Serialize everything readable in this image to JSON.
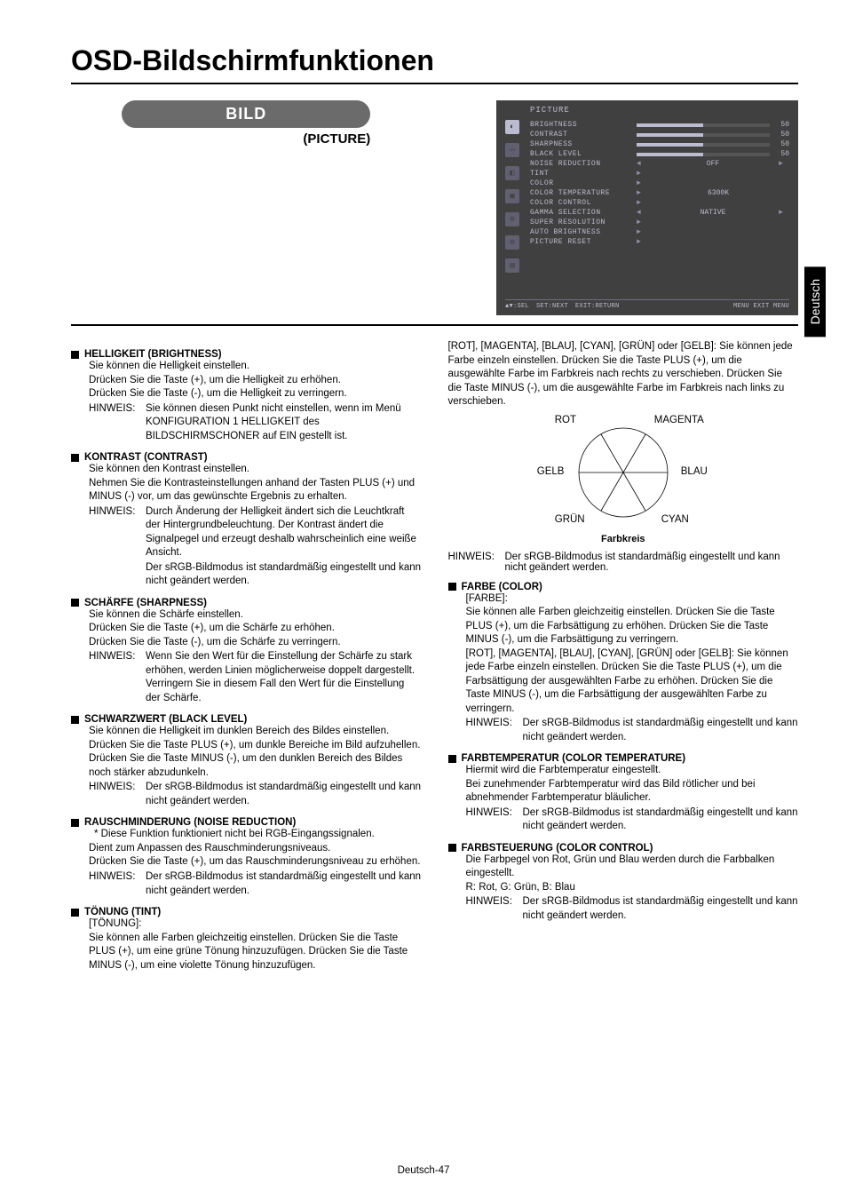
{
  "page": {
    "title": "OSD-Bildschirmfunktionen",
    "footer": "Deutsch-47",
    "sideTab": "Deutsch"
  },
  "category": {
    "badge": "BILD",
    "subtitle": "(PICTURE)"
  },
  "osd": {
    "header": "PICTURE",
    "items": [
      {
        "label": "BRIGHTNESS",
        "type": "bar",
        "value": 50
      },
      {
        "label": "CONTRAST",
        "type": "bar",
        "value": 50
      },
      {
        "label": "SHARPNESS",
        "type": "bar",
        "value": 50
      },
      {
        "label": "BLACK LEVEL",
        "type": "bar",
        "value": 50
      },
      {
        "label": "NOISE REDUCTION",
        "type": "select",
        "text": "OFF"
      },
      {
        "label": "TINT",
        "type": "arrow"
      },
      {
        "label": "COLOR",
        "type": "arrow"
      },
      {
        "label": "COLOR TEMPERATURE",
        "type": "text",
        "text": "6300K"
      },
      {
        "label": "COLOR CONTROL",
        "type": "arrow"
      },
      {
        "label": "GAMMA SELECTION",
        "type": "select",
        "text": "NATIVE"
      },
      {
        "label": "SUPER RESOLUTION",
        "type": "arrow"
      },
      {
        "label": "AUTO BRIGHTNESS",
        "type": "arrow"
      },
      {
        "label": "PICTURE RESET",
        "type": "arrow"
      }
    ],
    "footer": {
      "sel": "▲▼:SEL",
      "next": "SET:NEXT",
      "return": "EXIT:RETURN",
      "exit": "MENU EXIT MENU"
    }
  },
  "leftSections": [
    {
      "heading": "HELLIGKEIT (BRIGHTNESS)",
      "body": [
        "Sie können die Helligkeit einstellen.",
        "Drücken Sie die Taste (+), um die Helligkeit zu erhöhen.",
        "Drücken Sie die Taste (-), um die Helligkeit zu verringern."
      ],
      "hinweis": [
        "Sie können diesen Punkt nicht einstellen, wenn im Menü KONFIGURATION 1 HELLIGKEIT des BILDSCHIRMSCHONER auf EIN gestellt ist."
      ]
    },
    {
      "heading": "KONTRAST (CONTRAST)",
      "body": [
        "Sie können den Kontrast einstellen.",
        "Nehmen Sie die Kontrasteinstellungen anhand der Tasten PLUS (+) und MINUS (-) vor, um das gewünschte Ergebnis zu erhalten."
      ],
      "hinweis": [
        "Durch Änderung der Helligkeit ändert sich die Leuchtkraft der Hintergrundbeleuchtung. Der Kontrast ändert die Signalpegel und erzeugt deshalb wahrscheinlich eine weiße Ansicht.",
        "Der sRGB-Bildmodus ist standardmäßig eingestellt und kann nicht geändert werden."
      ]
    },
    {
      "heading": "SCHÄRFE (SHARPNESS)",
      "body": [
        "Sie können die Schärfe einstellen.",
        "Drücken Sie die Taste (+), um die Schärfe zu erhöhen.",
        "Drücken Sie die Taste (-), um die Schärfe zu verringern."
      ],
      "hinweis": [
        "Wenn Sie den Wert für die Einstellung der Schärfe zu stark erhöhen, werden Linien möglicherweise doppelt dargestellt. Verringern Sie in diesem Fall den Wert für die Einstellung der Schärfe."
      ]
    },
    {
      "heading": "SCHWARZWERT (BLACK LEVEL)",
      "body": [
        "Sie können die Helligkeit im dunklen Bereich des Bildes einstellen. Drücken Sie die Taste PLUS (+), um dunkle Bereiche im Bild aufzuhellen. Drücken Sie die Taste MINUS (-), um den dunklen Bereich des Bildes noch stärker abzudunkeln."
      ],
      "hinweis": [
        "Der sRGB-Bildmodus ist standardmäßig eingestellt und kann nicht geändert werden."
      ]
    },
    {
      "heading": "RAUSCHMINDERUNG (NOISE REDUCTION)",
      "star": "* Diese Funktion funktioniert nicht bei RGB-Eingangssignalen.",
      "body": [
        "Dient zum Anpassen des Rauschminderungsniveaus.",
        "Drücken Sie die Taste (+), um das Rauschminderungsniveau zu erhöhen."
      ],
      "hinweis": [
        "Der sRGB-Bildmodus ist standardmäßig eingestellt und kann nicht geändert werden."
      ]
    },
    {
      "heading": "TÖNUNG (TINT)",
      "body": [
        "[TÖNUNG]:",
        "Sie können alle Farben gleichzeitig einstellen. Drücken Sie die Taste PLUS (+), um eine grüne Tönung hinzuzufügen. Drücken Sie die Taste MINUS (-), um eine violette Tönung hinzuzufügen."
      ]
    }
  ],
  "rightTop": {
    "body": [
      "[ROT], [MAGENTA], [BLAU], [CYAN], [GRÜN] oder [GELB]: Sie können jede Farbe einzeln einstellen. Drücken Sie die Taste PLUS (+), um die ausgewählte Farbe im Farbkreis nach rechts zu verschieben. Drücken Sie die Taste MINUS (-), um die ausgewählte Farbe im Farbkreis nach links zu verschieben."
    ]
  },
  "colorwheel": {
    "labels": {
      "top_l": "ROT",
      "top_r": "MAGENTA",
      "mid_l": "GELB",
      "mid_r": "BLAU",
      "bot_l": "GRÜN",
      "bot_r": "CYAN"
    },
    "caption": "Farbkreis"
  },
  "rightHinweisAfterWheel": "Der sRGB-Bildmodus ist standardmäßig eingestellt und kann nicht geändert werden.",
  "rightSections": [
    {
      "heading": "FARBE (COLOR)",
      "body": [
        "[FARBE]:",
        "Sie können alle Farben gleichzeitig einstellen. Drücken Sie die Taste PLUS (+), um die Farbsättigung zu erhöhen. Drücken Sie die Taste MINUS (-), um die Farbsättigung zu verringern.",
        "[ROT], [MAGENTA], [BLAU], [CYAN], [GRÜN] oder [GELB]: Sie können jede Farbe einzeln einstellen. Drücken Sie die Taste PLUS (+), um die Farbsättigung der ausgewählten Farbe zu erhöhen. Drücken Sie die Taste MINUS (-), um die Farbsättigung der ausgewählten Farbe zu verringern."
      ],
      "hinweis": [
        "Der sRGB-Bildmodus ist standardmäßig eingestellt und kann nicht geändert werden."
      ]
    },
    {
      "heading": "FARBTEMPERATUR (COLOR TEMPERATURE)",
      "body": [
        "Hiermit wird die Farbtemperatur eingestellt.",
        "Bei zunehmender Farbtemperatur wird das Bild rötlicher und bei abnehmender Farbtemperatur bläulicher."
      ],
      "hinweis": [
        "Der sRGB-Bildmodus ist standardmäßig eingestellt und kann nicht geändert werden."
      ]
    },
    {
      "heading": "FARBSTEUERUNG (COLOR CONTROL)",
      "body": [
        "Die Farbpegel von Rot, Grün und Blau werden durch die Farbbalken eingestellt.",
        "R: Rot, G: Grün, B: Blau"
      ],
      "hinweis": [
        "Der sRGB-Bildmodus ist standardmäßig eingestellt und kann nicht geändert werden."
      ]
    }
  ],
  "labels": {
    "hinweis": "HINWEIS:"
  }
}
